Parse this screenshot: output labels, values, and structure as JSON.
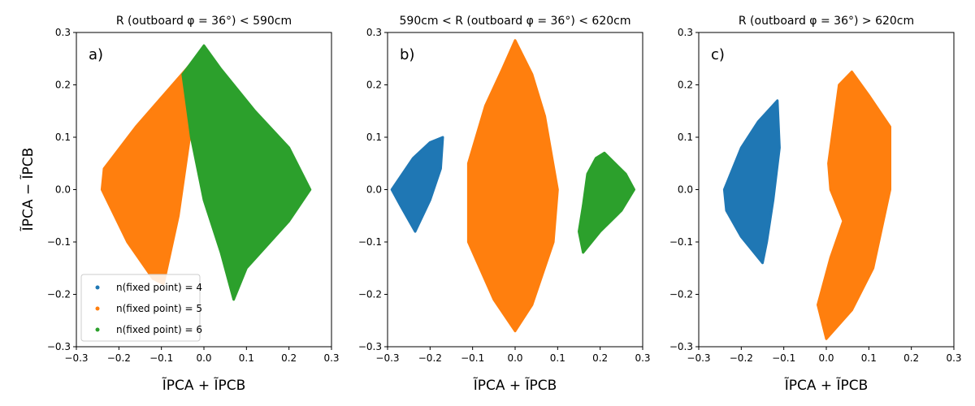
{
  "chart_data": [
    {
      "type": "scatter",
      "panel_tag": "a)",
      "title": "R (outboard φ = 36°) < 590cm",
      "xlabel": "ĨPCA + ĨPCB",
      "ylabel": "ĨPCA − ĨPCB",
      "xlim": [
        -0.3,
        0.3
      ],
      "ylim": [
        -0.3,
        0.3
      ],
      "xticks": [
        -0.3,
        -0.2,
        -0.1,
        0.0,
        0.1,
        0.2,
        0.3
      ],
      "yticks": [
        -0.3,
        -0.2,
        -0.1,
        0.0,
        0.1,
        0.2,
        0.3
      ],
      "legend_position": "lower-left",
      "series": [
        {
          "name": "n(fixed point) = 5",
          "color": "#ff7f0e",
          "region": [
            [
              -0.235,
              0.04
            ],
            [
              -0.16,
              0.12
            ],
            [
              -0.02,
              0.25
            ],
            [
              -0.03,
              0.12
            ],
            [
              -0.06,
              -0.05
            ],
            [
              -0.095,
              -0.18
            ],
            [
              -0.12,
              -0.17
            ],
            [
              -0.18,
              -0.1
            ],
            [
              -0.24,
              0.0
            ]
          ]
        },
        {
          "name": "n(fixed point) = 6",
          "color": "#2ca02c",
          "region": [
            [
              -0.05,
              0.22
            ],
            [
              0.0,
              0.275
            ],
            [
              0.04,
              0.23
            ],
            [
              0.12,
              0.15
            ],
            [
              0.2,
              0.08
            ],
            [
              0.25,
              0.0
            ],
            [
              0.2,
              -0.06
            ],
            [
              0.1,
              -0.15
            ],
            [
              0.07,
              -0.21
            ],
            [
              0.04,
              -0.12
            ],
            [
              0.0,
              -0.02
            ],
            [
              -0.03,
              0.1
            ]
          ]
        }
      ]
    },
    {
      "type": "scatter",
      "panel_tag": "b)",
      "title": "590cm < R (outboard φ = 36°) < 620cm",
      "xlabel": "ĨPCA + ĨPCB",
      "ylabel": "",
      "xlim": [
        -0.3,
        0.3
      ],
      "ylim": [
        -0.3,
        0.3
      ],
      "xticks": [
        -0.3,
        -0.2,
        -0.1,
        0.0,
        0.1,
        0.2,
        0.3
      ],
      "yticks": [
        -0.3,
        -0.2,
        -0.1,
        0.0,
        0.1,
        0.2,
        0.3
      ],
      "series": [
        {
          "name": "n(fixed point) = 4",
          "color": "#1f77b4",
          "region": [
            [
              -0.29,
              0.0
            ],
            [
              -0.24,
              0.06
            ],
            [
              -0.2,
              0.09
            ],
            [
              -0.17,
              0.1
            ],
            [
              -0.175,
              0.04
            ],
            [
              -0.2,
              -0.02
            ],
            [
              -0.235,
              -0.08
            ],
            [
              -0.27,
              -0.03
            ]
          ]
        },
        {
          "name": "n(fixed point) = 5",
          "color": "#ff7f0e",
          "region": [
            [
              -0.07,
              0.16
            ],
            [
              -0.03,
              0.23
            ],
            [
              0.0,
              0.285
            ],
            [
              0.04,
              0.22
            ],
            [
              0.07,
              0.14
            ],
            [
              0.1,
              0.0
            ],
            [
              0.09,
              -0.1
            ],
            [
              0.04,
              -0.22
            ],
            [
              0.0,
              -0.27
            ],
            [
              -0.05,
              -0.21
            ],
            [
              -0.11,
              -0.1
            ],
            [
              -0.11,
              0.05
            ]
          ]
        },
        {
          "name": "n(fixed point) = 6",
          "color": "#2ca02c",
          "region": [
            [
              0.17,
              0.03
            ],
            [
              0.19,
              0.06
            ],
            [
              0.21,
              0.07
            ],
            [
              0.26,
              0.03
            ],
            [
              0.28,
              0.0
            ],
            [
              0.25,
              -0.04
            ],
            [
              0.2,
              -0.08
            ],
            [
              0.16,
              -0.12
            ],
            [
              0.15,
              -0.08
            ],
            [
              0.16,
              -0.03
            ]
          ]
        }
      ]
    },
    {
      "type": "scatter",
      "panel_tag": "c)",
      "title": "R (outboard φ = 36°) > 620cm",
      "xlabel": "ĨPCA + ĨPCB",
      "ylabel": "",
      "xlim": [
        -0.3,
        0.3
      ],
      "ylim": [
        -0.3,
        0.3
      ],
      "xticks": [
        -0.3,
        -0.2,
        -0.1,
        0.0,
        0.1,
        0.2,
        0.3
      ],
      "yticks": [
        -0.3,
        -0.2,
        -0.1,
        0.0,
        0.1,
        0.2,
        0.3
      ],
      "series": [
        {
          "name": "n(fixed point) = 4",
          "color": "#1f77b4",
          "region": [
            [
              -0.24,
              0.0
            ],
            [
              -0.2,
              0.08
            ],
            [
              -0.16,
              0.13
            ],
            [
              -0.115,
              0.17
            ],
            [
              -0.11,
              0.08
            ],
            [
              -0.125,
              -0.02
            ],
            [
              -0.14,
              -0.1
            ],
            [
              -0.15,
              -0.14
            ],
            [
              -0.2,
              -0.09
            ],
            [
              -0.235,
              -0.04
            ]
          ]
        },
        {
          "name": "n(fixed point) = 5",
          "color": "#ff7f0e",
          "region": [
            [
              0.005,
              0.05
            ],
            [
              0.03,
              0.2
            ],
            [
              0.06,
              0.225
            ],
            [
              0.1,
              0.18
            ],
            [
              0.15,
              0.12
            ],
            [
              0.15,
              0.0
            ],
            [
              0.11,
              -0.15
            ],
            [
              0.06,
              -0.23
            ],
            [
              0.0,
              -0.285
            ],
            [
              -0.02,
              -0.22
            ],
            [
              0.01,
              -0.13
            ],
            [
              0.04,
              -0.06
            ],
            [
              0.01,
              0.0
            ]
          ]
        }
      ]
    }
  ]
}
